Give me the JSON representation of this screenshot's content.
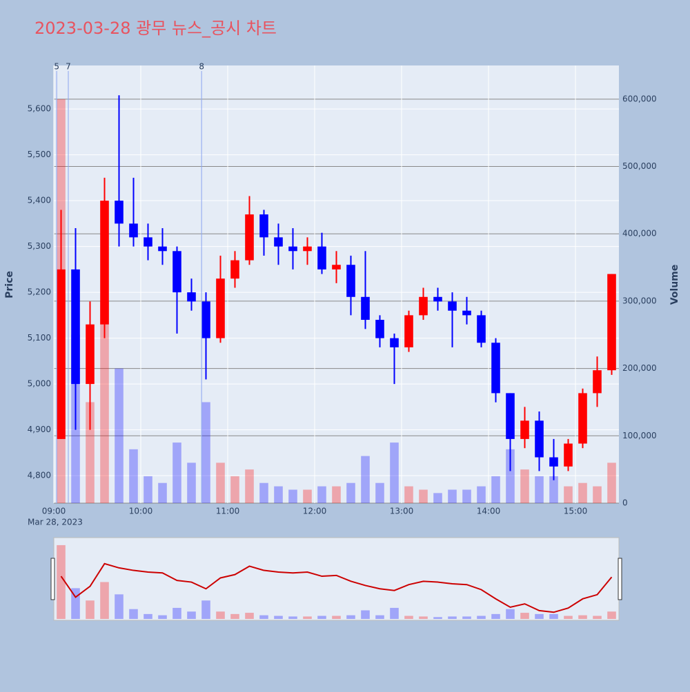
{
  "chart_data": {
    "type": "candlestick",
    "title": "2023-03-28 광무 뉴스_공시 차트",
    "ylabel": "Price",
    "y2label": "Volume",
    "date_label": "Mar 28, 2023",
    "increasing_color": "#ff0000",
    "decreasing_color": "#0000ff",
    "x": [
      "09:00",
      "09:10",
      "09:20",
      "09:30",
      "09:40",
      "09:50",
      "10:00",
      "10:10",
      "10:20",
      "10:30",
      "10:40",
      "10:50",
      "11:00",
      "11:10",
      "11:20",
      "11:30",
      "11:40",
      "11:50",
      "12:00",
      "12:10",
      "12:20",
      "12:30",
      "12:40",
      "12:50",
      "13:00",
      "13:10",
      "13:20",
      "13:30",
      "13:40",
      "13:50",
      "14:00",
      "14:10",
      "14:20",
      "14:30",
      "14:40",
      "14:50",
      "15:00",
      "15:10",
      "15:20"
    ],
    "open": [
      4880,
      5250,
      5000,
      5130,
      5400,
      5350,
      5320,
      5300,
      5290,
      5200,
      5180,
      5100,
      5230,
      5270,
      5370,
      5320,
      5300,
      5290,
      5300,
      5250,
      5260,
      5190,
      5140,
      5100,
      5080,
      5150,
      5190,
      5180,
      5160,
      5150,
      5090,
      4980,
      4880,
      4920,
      4840,
      4820,
      4870,
      4980,
      5030
    ],
    "high": [
      5380,
      5340,
      5180,
      5450,
      5630,
      5450,
      5350,
      5340,
      5300,
      5230,
      5200,
      5280,
      5290,
      5410,
      5380,
      5350,
      5340,
      5320,
      5330,
      5290,
      5280,
      5290,
      5150,
      5110,
      5160,
      5210,
      5210,
      5200,
      5190,
      5160,
      5100,
      4980,
      4950,
      4940,
      4880,
      4880,
      4990,
      5060,
      5240
    ],
    "low": [
      4880,
      4900,
      4900,
      5100,
      5300,
      5300,
      5270,
      5260,
      5110,
      5160,
      5010,
      5090,
      5210,
      5260,
      5280,
      5260,
      5250,
      5260,
      5240,
      5220,
      5150,
      5120,
      5080,
      5000,
      5070,
      5140,
      5160,
      5080,
      5130,
      5080,
      4960,
      4810,
      4860,
      4810,
      4790,
      4810,
      4860,
      4950,
      5020
    ],
    "close": [
      5250,
      5000,
      5130,
      5400,
      5350,
      5320,
      5300,
      5290,
      5200,
      5180,
      5100,
      5230,
      5270,
      5370,
      5320,
      5300,
      5290,
      5300,
      5250,
      5260,
      5190,
      5140,
      5100,
      5080,
      5150,
      5190,
      5180,
      5160,
      5150,
      5090,
      4980,
      4880,
      4920,
      4840,
      4820,
      4870,
      4980,
      5030,
      5240
    ],
    "volume": [
      600000,
      250000,
      150000,
      300000,
      200000,
      80000,
      40000,
      30000,
      90000,
      60000,
      150000,
      60000,
      40000,
      50000,
      30000,
      25000,
      20000,
      20000,
      25000,
      25000,
      30000,
      70000,
      30000,
      90000,
      25000,
      20000,
      15000,
      20000,
      20000,
      25000,
      40000,
      80000,
      50000,
      40000,
      40000,
      25000,
      30000,
      25000,
      60000
    ],
    "xlim": [
      "09:00",
      "15:30"
    ],
    "xticks": [
      "09:00",
      "10:00",
      "11:00",
      "12:00",
      "13:00",
      "14:00",
      "15:00"
    ],
    "ylim": [
      4740,
      5695
    ],
    "yticks": [
      {
        "value": 4800,
        "label": "4,800"
      },
      {
        "value": 4900,
        "label": "4,900"
      },
      {
        "value": 5000,
        "label": "5,000"
      },
      {
        "value": 5100,
        "label": "5,100"
      },
      {
        "value": 5200,
        "label": "5,200"
      },
      {
        "value": 5300,
        "label": "5,300"
      },
      {
        "value": 5400,
        "label": "5,400"
      },
      {
        "value": 5500,
        "label": "5,500"
      },
      {
        "value": 5600,
        "label": "5,600"
      }
    ],
    "y2lim": [
      0,
      650000
    ],
    "y2ticks": [
      0,
      {
        "value": 100000,
        "label": "100,000"
      },
      {
        "value": 200000,
        "label": "200,000"
      },
      {
        "value": 300000,
        "label": "300,000"
      },
      {
        "value": 400000,
        "label": "400,000"
      },
      {
        "value": 500000,
        "label": "500,000"
      },
      {
        "value": 600000,
        "label": "600,000"
      }
    ],
    "annotations": [
      {
        "x": "09:02",
        "text": "5"
      },
      {
        "x": "09:10",
        "text": "7"
      },
      {
        "x": "10:42",
        "text": "8"
      }
    ]
  }
}
